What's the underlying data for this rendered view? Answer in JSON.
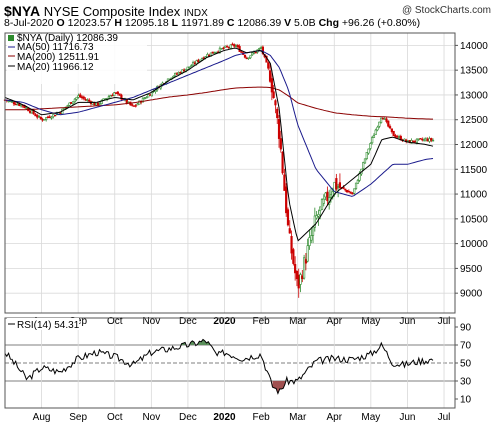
{
  "header": {
    "symbol": "$NYA",
    "name": "NYSE Composite Index",
    "exchange": "INDX",
    "brand": "@ StockCharts.com"
  },
  "ohlc": {
    "date": "8-Jul-2020",
    "o_label": "O",
    "o": "12023.57",
    "h_label": "H",
    "h": "12095.18",
    "l_label": "L",
    "l": "11971.89",
    "c_label": "C",
    "c": "12086.39",
    "v_label": "V",
    "v": "5.0B",
    "chg_label": "Chg",
    "chg": "+96.26 (+0.80%)"
  },
  "legend": {
    "price": "$NYA (Daily) 12086.39",
    "ma50": "MA(50) 11716.73",
    "ma200": "MA(200) 12511.91",
    "ma20": "MA(20) 11966.12",
    "rsi": "RSI(14) 54.31"
  },
  "colors": {
    "up": "#2e8b2e",
    "down": "#cc0000",
    "ma50": "#1a1a8c",
    "ma200": "#8b0000",
    "ma20": "#000000",
    "rsi_line": "#000000",
    "rsi_over": "#5a8f5a",
    "rsi_under": "#a05050",
    "grid": "#d9d9d9"
  },
  "chart_data": [
    {
      "type": "candlestick",
      "x_labels": [
        "Aug",
        "Sep",
        "Oct",
        "Nov",
        "Dec",
        "2020",
        "Feb",
        "Mar",
        "Apr",
        "May",
        "Jun",
        "Jul"
      ],
      "x_label_months": [
        1,
        2,
        3,
        4,
        5,
        6,
        7,
        8,
        9,
        10,
        11,
        12
      ],
      "yticks": [
        9000,
        9500,
        10000,
        10500,
        11000,
        11500,
        12000,
        12500,
        13000,
        13500,
        14000
      ],
      "ylim": [
        8600,
        14250
      ],
      "grid": true,
      "anchors": {
        "months": [
          0,
          0.5,
          1,
          1.5,
          2,
          2.5,
          3,
          3.5,
          4,
          4.5,
          5,
          5.5,
          6,
          6.3,
          6.6,
          7,
          7.25,
          7.5,
          7.75,
          8,
          8.5,
          9,
          9.5,
          10,
          10.3,
          10.6,
          11,
          11.5,
          11.7
        ],
        "close": [
          12900,
          12780,
          12500,
          12650,
          12980,
          12800,
          13050,
          12750,
          13050,
          13350,
          13550,
          13800,
          13950,
          14000,
          13750,
          13950,
          13400,
          12200,
          10200,
          9100,
          10500,
          11200,
          11000,
          12050,
          12600,
          12200,
          12050,
          12100,
          12086
        ]
      },
      "ma50_anchors": [
        12900,
        12850,
        12700,
        12600,
        12650,
        12750,
        12850,
        12950,
        13100,
        13250,
        13400,
        13550,
        13700,
        13800,
        13850,
        13900,
        13800,
        13550,
        13100,
        12400,
        11500,
        11050,
        10950,
        11200,
        11400,
        11600,
        11600,
        11700,
        11717
      ],
      "ma200_anchors": [
        12700,
        12700,
        12720,
        12740,
        12760,
        12780,
        12800,
        12840,
        12900,
        12960,
        13000,
        13050,
        13110,
        13140,
        13150,
        13160,
        13150,
        13100,
        12980,
        12840,
        12730,
        12640,
        12600,
        12570,
        12560,
        12550,
        12530,
        12515,
        12512
      ],
      "ma20_anchors": [
        12950,
        12800,
        12600,
        12650,
        12850,
        12850,
        12950,
        12900,
        13050,
        13300,
        13500,
        13750,
        13900,
        13950,
        13850,
        13900,
        13650,
        12700,
        10900,
        10050,
        10400,
        11000,
        11300,
        11600,
        12100,
        12150,
        12050,
        12000,
        11966
      ]
    },
    {
      "type": "line",
      "name": "RSI(14)",
      "yticks": [
        10,
        30,
        50,
        70,
        90
      ],
      "ylim": [
        0,
        100
      ],
      "levels": [
        30,
        50,
        70
      ],
      "anchors": {
        "months": [
          0,
          0.3,
          0.6,
          1,
          1.5,
          2,
          2.5,
          3,
          3.5,
          4,
          4.5,
          5,
          5.5,
          5.8,
          6,
          6.5,
          7,
          7.3,
          7.5,
          7.7,
          8,
          8.5,
          9,
          9.5,
          10,
          10.3,
          10.6,
          10.9,
          11.3,
          11.7
        ],
        "value": [
          62,
          48,
          32,
          45,
          40,
          55,
          62,
          57,
          48,
          62,
          66,
          70,
          75,
          58,
          62,
          55,
          60,
          25,
          18,
          30,
          30,
          52,
          55,
          54,
          60,
          70,
          50,
          48,
          52,
          54
        ]
      }
    }
  ]
}
